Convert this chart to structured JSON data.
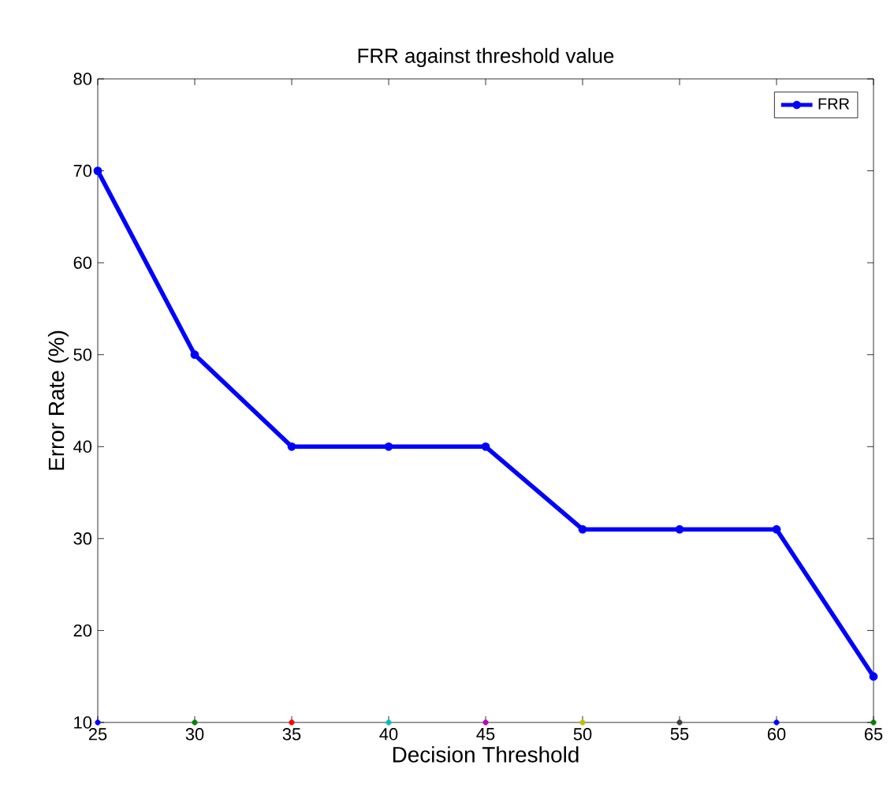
{
  "chart_data": {
    "type": "line",
    "title": "FRR against threshold value",
    "xlabel": "Decision Threshold",
    "ylabel": "Error Rate (%)",
    "x": [
      25,
      30,
      35,
      40,
      45,
      50,
      55,
      60,
      65
    ],
    "series": [
      {
        "name": "FRR",
        "color": "#0000ff",
        "values": [
          70,
          50,
          40,
          40,
          40,
          31,
          31,
          31,
          15
        ],
        "marker": "circle"
      },
      {
        "type": "scatter",
        "colors": [
          "#0000ff",
          "#008000",
          "#ff0000",
          "#00bfbf",
          "#bf00bf",
          "#bfbf00",
          "#404040",
          "#0000ff",
          "#008000"
        ],
        "values": [
          10,
          10,
          10,
          10,
          10,
          10,
          10,
          10,
          10
        ],
        "marker": "circle"
      }
    ],
    "xlim": [
      25,
      65
    ],
    "ylim": [
      10,
      80
    ],
    "xticks": [
      25,
      30,
      35,
      40,
      45,
      50,
      55,
      60,
      65
    ],
    "yticks": [
      10,
      20,
      30,
      40,
      50,
      60,
      70,
      80
    ],
    "grid": false,
    "legend": "top right"
  }
}
